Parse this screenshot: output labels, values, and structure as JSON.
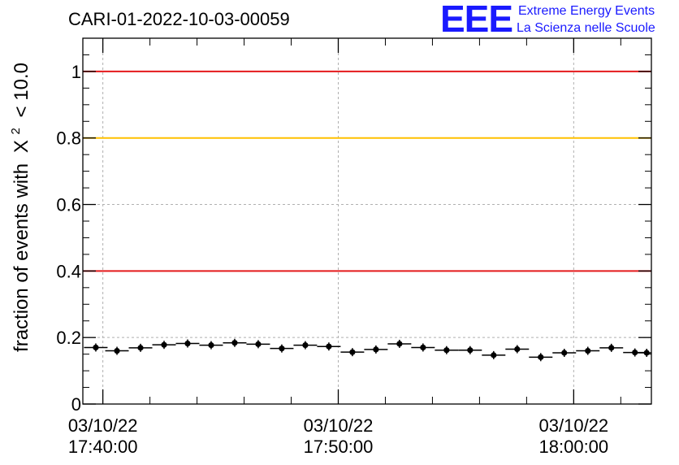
{
  "chart_data": {
    "type": "scatter",
    "title": "CARI-01-2022-10-03-00059",
    "ylabel_main": "fraction of events with",
    "ylabel_chi": "X",
    "ylabel_sup": "2",
    "ylabel_tail": "< 10.0",
    "ylim": [
      0,
      1.1
    ],
    "y_ticks": [
      "0",
      "0.2",
      "0.4",
      "0.6",
      "0.8",
      "1"
    ],
    "y_tick_values": [
      0,
      0.2,
      0.4,
      0.6,
      0.8,
      1.0
    ],
    "x_tick_labels": [
      {
        "date": "03/10/22",
        "time": "17:40:00"
      },
      {
        "date": "03/10/22",
        "time": "17:50:00"
      },
      {
        "date": "03/10/22",
        "time": "18:00:00"
      }
    ],
    "x_tick_minutes": [
      0,
      10,
      20
    ],
    "xlim_minutes": [
      -0.85,
      23.3
    ],
    "grid": true,
    "reference_lines": [
      {
        "y": 1.0,
        "color": "#e41a1c"
      },
      {
        "y": 0.8,
        "color": "#ffc000"
      },
      {
        "y": 0.4,
        "color": "#e41a1c"
      }
    ],
    "bin_minutes": 1.0,
    "x_minutes": [
      -0.3,
      0.6,
      1.6,
      2.6,
      3.6,
      4.6,
      5.6,
      6.6,
      7.6,
      8.6,
      9.6,
      10.6,
      11.6,
      12.6,
      13.6,
      14.6,
      15.6,
      16.6,
      17.6,
      18.6,
      19.6,
      20.6,
      21.6,
      22.6,
      23.1
    ],
    "values": [
      0.17,
      0.16,
      0.169,
      0.178,
      0.182,
      0.177,
      0.184,
      0.18,
      0.167,
      0.177,
      0.173,
      0.156,
      0.164,
      0.181,
      0.17,
      0.162,
      0.162,
      0.147,
      0.165,
      0.141,
      0.154,
      0.16,
      0.169,
      0.155,
      0.154
    ]
  },
  "logo": {
    "mark": "EEE",
    "line1": "Extreme Energy Events",
    "line2": "La Scienza nelle Scuole"
  }
}
